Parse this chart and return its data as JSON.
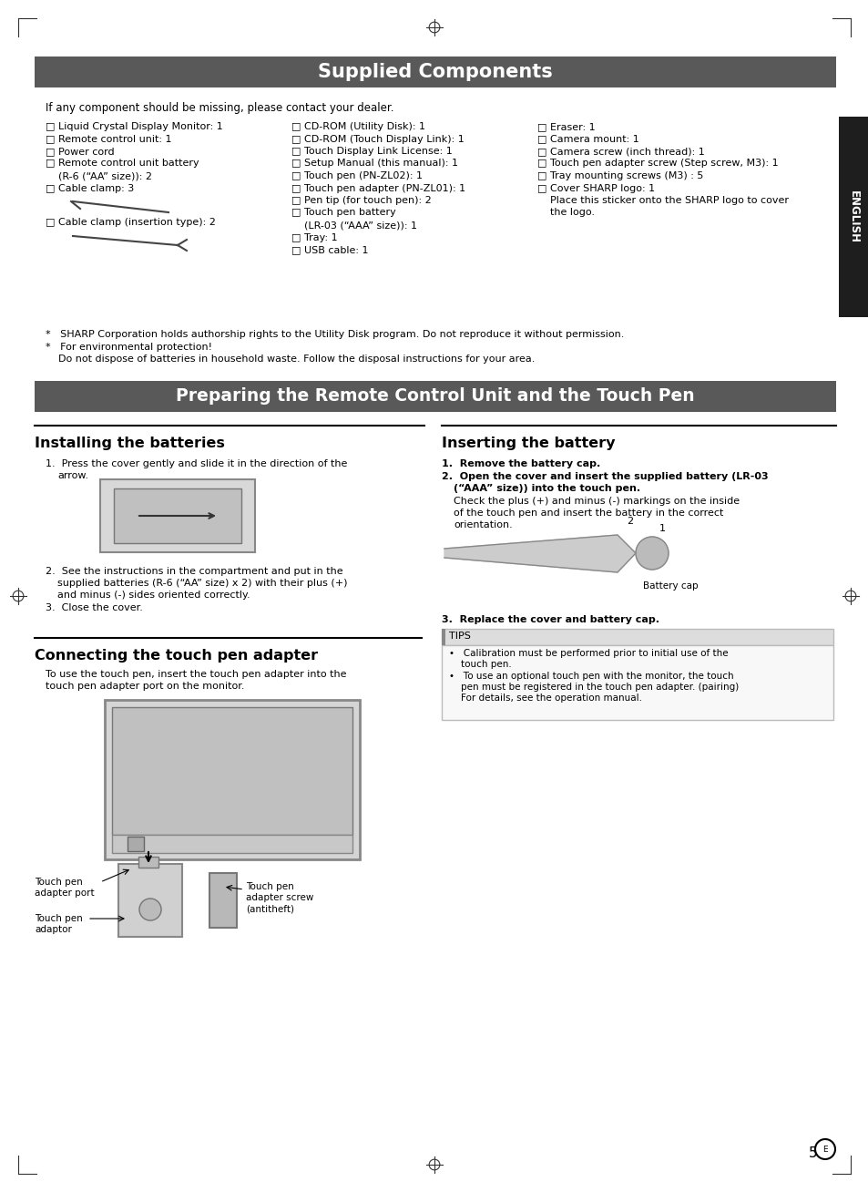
{
  "page_bg": "#ffffff",
  "header_bg": "#595959",
  "header_text_color": "#ffffff",
  "english_tab_bg": "#1e1e1e",
  "english_tab_text": "#ffffff",
  "title1": "Supplied Components",
  "title2": "Preparing the Remote Control Unit and the Touch Pen",
  "intro_text": "If any component should be missing, please contact your dealer.",
  "col1_lines": [
    "□ Liquid Crystal Display Monitor: 1",
    "□ Remote control unit: 1",
    "□ Power cord",
    "□ Remote control unit battery",
    "    (R-6 (“AA” size)): 2",
    "□ Cable clamp: 3"
  ],
  "col2_lines": [
    "□ CD-ROM (Utility Disk): 1",
    "□ CD-ROM (Touch Display Link): 1",
    "□ Touch Display Link License: 1",
    "□ Setup Manual (this manual): 1",
    "□ Touch pen (PN-ZL02): 1",
    "□ Touch pen adapter (PN-ZL01): 1",
    "□ Pen tip (for touch pen): 2",
    "□ Touch pen battery",
    "    (LR-03 (“AAA” size)): 1",
    "□ Tray: 1",
    "□ USB cable: 1"
  ],
  "col3_lines": [
    "□ Eraser: 1",
    "□ Camera mount: 1",
    "□ Camera screw (inch thread): 1",
    "□ Touch pen adapter screw (Step screw, M3): 1",
    "□ Tray mounting screws (M3) : 5",
    "□ Cover SHARP logo: 1",
    "    Place this sticker onto the SHARP logo to cover",
    "    the logo."
  ],
  "note1": "*   SHARP Corporation holds authorship rights to the Utility Disk program. Do not reproduce it without permission.",
  "note2a": "*   For environmental protection!",
  "note2b": "    Do not dispose of batteries in household waste. Follow the disposal instructions for your area.",
  "install_title": "Installing the batteries",
  "insert_title": "Inserting the battery",
  "connect_title": "Connecting the touch pen adapter",
  "connect_text1": "To use the touch pen, insert the touch pen adapter into the",
  "connect_text2": "touch pen adapter port on the monitor.",
  "tips_title": "TIPS",
  "tip1a": "•   Calibration must be performed prior to initial use of the",
  "tip1b": "    touch pen.",
  "tip2a": "•   To use an optional touch pen with the monitor, the touch",
  "tip2b": "    pen must be registered in the touch pen adapter. (pairing)",
  "tip2c": "    For details, see the operation manual.",
  "page_number": "5"
}
